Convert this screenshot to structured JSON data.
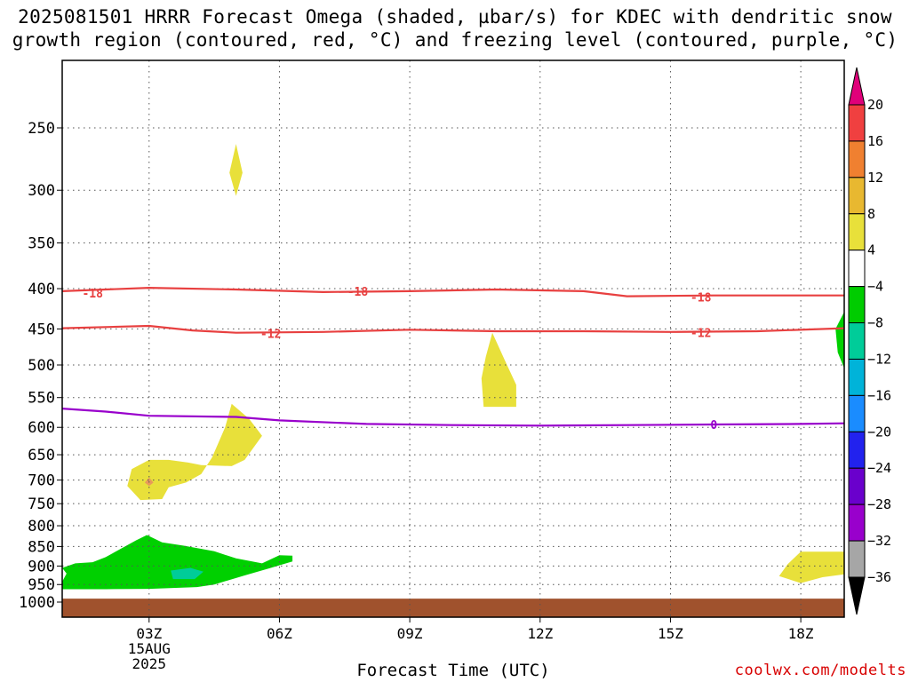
{
  "title": {
    "line1": "2025081501 HRRR Forecast Omega (shaded, µbar/s) for KDEC with dendritic snow",
    "line2": "growth region (contoured, red, °C) and freezing level (contoured, purple, °C)"
  },
  "credit": "coolwx.com/modelts",
  "chart_data": {
    "type": "heatmap",
    "xlabel": "Forecast Time (UTC)",
    "ylabel": "",
    "x_axis": {
      "range_hours": [
        1,
        19
      ],
      "ticks": [
        {
          "hour": 3,
          "label": "03Z",
          "sub": [
            "15AUG",
            "2025"
          ]
        },
        {
          "hour": 6,
          "label": "06Z"
        },
        {
          "hour": 9,
          "label": "09Z"
        },
        {
          "hour": 12,
          "label": "12Z"
        },
        {
          "hour": 15,
          "label": "15Z"
        },
        {
          "hour": 18,
          "label": "18Z"
        }
      ]
    },
    "y_axis": {
      "units": "hPa",
      "scale": "pressure (log)",
      "range_hpa": [
        1000,
        200
      ],
      "ticks": [
        250,
        300,
        350,
        400,
        450,
        500,
        550,
        600,
        650,
        700,
        750,
        800,
        850,
        900,
        950,
        1000
      ]
    },
    "grid": true,
    "ground": {
      "from_hpa": 990,
      "color": "#a0522d"
    },
    "colorbar": {
      "levels": [
        -36,
        -32,
        -28,
        -24,
        -20,
        -16,
        -12,
        -8,
        -4,
        4,
        8,
        12,
        16,
        20
      ],
      "colors": [
        "#a6a6a6",
        "#9900cc",
        "#6a00cc",
        "#2222ee",
        "#1a8cff",
        "#00b3d9",
        "#00cc99",
        "#00cc00",
        "#ffffff",
        "#e8e03a",
        "#e8b830",
        "#f08030",
        "#f04040"
      ],
      "below_color": "#000000",
      "above_color": "#e0007a"
    },
    "contours": [
      {
        "name": "-18",
        "color": "#e84040",
        "points": [
          [
            1,
            403
          ],
          [
            3,
            399
          ],
          [
            5,
            401
          ],
          [
            7,
            404
          ],
          [
            9,
            403
          ],
          [
            11,
            401
          ],
          [
            13,
            403
          ],
          [
            14,
            409
          ],
          [
            16,
            408
          ],
          [
            19,
            408
          ]
        ],
        "labels": [
          [
            1.7,
            405
          ],
          [
            7.8,
            403
          ],
          [
            15.7,
            410
          ]
        ]
      },
      {
        "name": "-12",
        "color": "#e84040",
        "points": [
          [
            1,
            449
          ],
          [
            3,
            446
          ],
          [
            4,
            452
          ],
          [
            5,
            455
          ],
          [
            7,
            454
          ],
          [
            9,
            451
          ],
          [
            11,
            453
          ],
          [
            13,
            453
          ],
          [
            15,
            454
          ],
          [
            17,
            453
          ],
          [
            19,
            449
          ]
        ],
        "labels": [
          [
            5.8,
            456
          ],
          [
            15.7,
            455
          ]
        ]
      },
      {
        "name": "0",
        "color": "#9900cc",
        "points": [
          [
            1,
            568
          ],
          [
            2,
            573
          ],
          [
            3,
            580
          ],
          [
            5,
            582
          ],
          [
            6,
            588
          ],
          [
            8,
            594
          ],
          [
            10,
            596
          ],
          [
            12,
            597
          ],
          [
            14,
            596
          ],
          [
            16,
            595
          ],
          [
            18,
            594
          ],
          [
            19,
            593
          ]
        ],
        "labels": [
          [
            16,
            595
          ]
        ]
      }
    ],
    "regions": [
      {
        "value_range": [
          4,
          8
        ],
        "color": "#e8e03a",
        "points": [
          [
            5.0,
            262
          ],
          [
            5.15,
            285
          ],
          [
            5.0,
            305
          ],
          [
            4.85,
            285
          ]
        ]
      },
      {
        "value_range": [
          4,
          8
        ],
        "color": "#e8e03a",
        "points": [
          [
            10.9,
            455
          ],
          [
            11.2,
            495
          ],
          [
            11.45,
            530
          ],
          [
            11.45,
            565
          ],
          [
            10.7,
            565
          ],
          [
            10.65,
            520
          ],
          [
            10.75,
            488
          ]
        ]
      },
      {
        "value_range": [
          4,
          8
        ],
        "color": "#e8e03a",
        "points": [
          [
            4.9,
            560
          ],
          [
            5.3,
            585
          ],
          [
            5.6,
            615
          ],
          [
            5.2,
            660
          ],
          [
            4.9,
            672
          ],
          [
            4.2,
            670
          ],
          [
            3.9,
            665
          ],
          [
            3.45,
            660
          ],
          [
            3.0,
            660
          ],
          [
            2.6,
            678
          ],
          [
            2.5,
            712
          ],
          [
            2.8,
            742
          ],
          [
            3.3,
            740
          ],
          [
            3.45,
            715
          ],
          [
            3.85,
            705
          ],
          [
            4.2,
            688
          ],
          [
            4.45,
            655
          ],
          [
            4.75,
            600
          ]
        ]
      },
      {
        "value_range": [
          8,
          12
        ],
        "color": "#e89a5a",
        "points": [
          [
            3.0,
            695
          ],
          [
            3.1,
            705
          ],
          [
            3.0,
            712
          ],
          [
            2.9,
            705
          ]
        ]
      },
      {
        "value_range": [
          -8,
          -4
        ],
        "color": "#00d000",
        "points": [
          [
            2.0,
            877
          ],
          [
            2.7,
            835
          ],
          [
            2.95,
            822
          ],
          [
            3.3,
            840
          ],
          [
            3.8,
            848
          ],
          [
            4.5,
            862
          ],
          [
            5.0,
            880
          ],
          [
            5.6,
            893
          ],
          [
            6.0,
            872
          ],
          [
            6.3,
            873
          ],
          [
            6.3,
            888
          ],
          [
            5.8,
            905
          ],
          [
            5.2,
            925
          ],
          [
            4.5,
            950
          ],
          [
            4.1,
            957
          ],
          [
            3.0,
            962
          ],
          [
            2.0,
            963
          ],
          [
            1.0,
            963
          ],
          [
            1.0,
            942
          ],
          [
            1.1,
            920
          ],
          [
            1.0,
            905
          ],
          [
            1.3,
            893
          ],
          [
            1.7,
            890
          ]
        ]
      },
      {
        "value_range": [
          -12,
          -8
        ],
        "color": "#00cc99",
        "points": [
          [
            3.5,
            912
          ],
          [
            3.95,
            905
          ],
          [
            4.25,
            915
          ],
          [
            4.05,
            935
          ],
          [
            3.55,
            935
          ]
        ]
      },
      {
        "value_range": [
          4,
          8
        ],
        "color": "#e8e03a",
        "points": [
          [
            18.0,
            863
          ],
          [
            19.0,
            863
          ],
          [
            19.0,
            922
          ],
          [
            18.5,
            930
          ],
          [
            18.0,
            946
          ],
          [
            17.5,
            927
          ],
          [
            17.7,
            895
          ]
        ]
      },
      {
        "value_range": [
          -8,
          -4
        ],
        "color": "#00d000",
        "points": [
          [
            19.0,
            428
          ],
          [
            19.0,
            505
          ],
          [
            18.85,
            482
          ],
          [
            18.8,
            450
          ]
        ]
      }
    ]
  }
}
